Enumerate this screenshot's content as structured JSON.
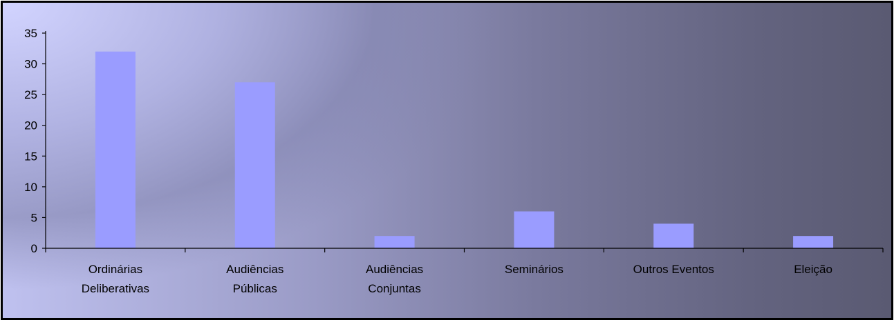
{
  "chart_data": {
    "type": "bar",
    "categories": [
      [
        "Ordinárias",
        "Deliberativas"
      ],
      [
        "Audiências",
        "Públicas"
      ],
      [
        "Audiências",
        "Conjuntas"
      ],
      [
        "Seminários"
      ],
      [
        "Outros Eventos"
      ],
      [
        "Eleição"
      ]
    ],
    "values": [
      32,
      27,
      2,
      6,
      4,
      2
    ],
    "ylim": [
      0,
      35
    ],
    "yticks": [
      "0",
      "5",
      "10",
      "15",
      "20",
      "25",
      "30",
      "35"
    ],
    "grid": false,
    "legend": "none",
    "bar_color": "#9a9cff",
    "axis_color": "#000000"
  }
}
